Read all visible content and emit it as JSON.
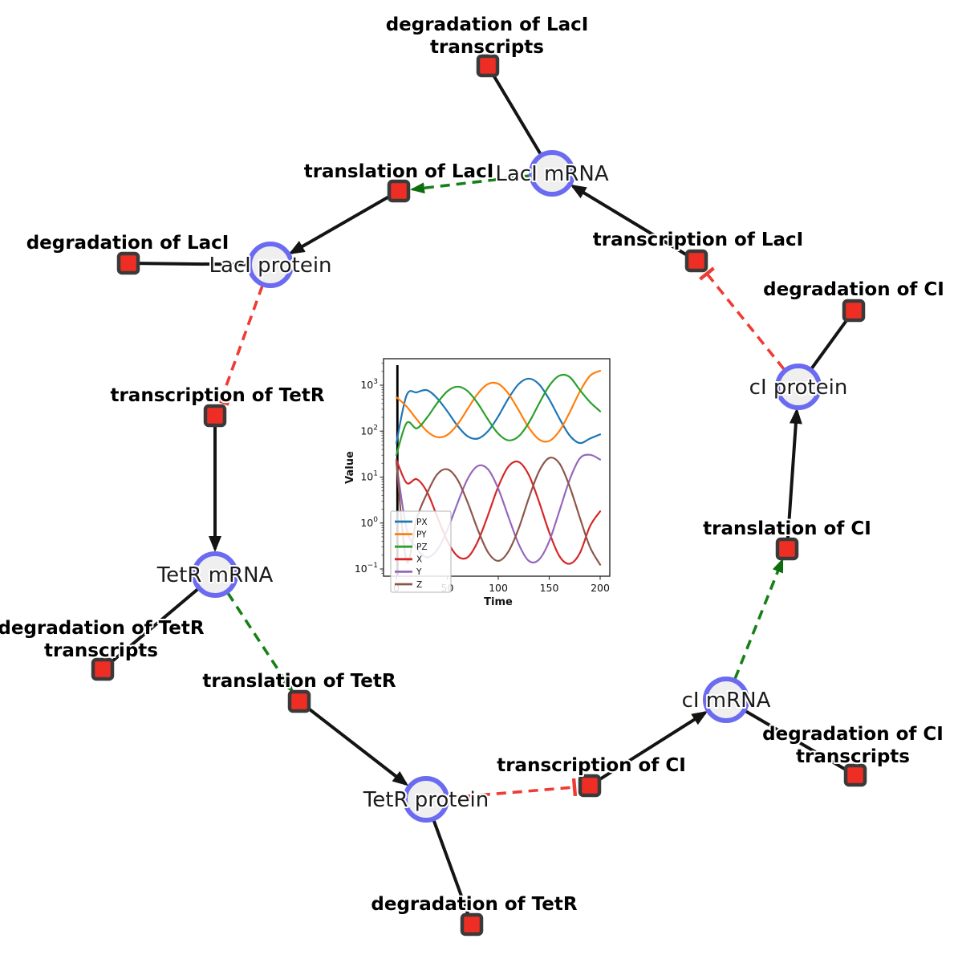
{
  "network": {
    "style": {
      "species_fill": "#efefef",
      "species_border": "#6b6bf2",
      "reaction_fill": "#ee2e24",
      "reaction_border": "#3a3a3a",
      "edge_reaction_color": "#141414",
      "edge_stimulation_color": "#168016",
      "edge_inhibition_color": "#ee3b33"
    },
    "species": [
      {
        "label": "LacI mRNA"
      },
      {
        "label": "LacI protein"
      },
      {
        "label": "TetR mRNA"
      },
      {
        "label": "TetR protein"
      },
      {
        "label": "cI mRNA"
      },
      {
        "label": "cI protein"
      }
    ],
    "reactions": [
      {
        "lines": [
          "degradation of LacI",
          "transcripts"
        ]
      },
      {
        "lines": [
          "translation of LacI"
        ]
      },
      {
        "lines": [
          "transcription of LacI"
        ]
      },
      {
        "lines": [
          "degradation of LacI"
        ]
      },
      {
        "lines": [
          "transcription of TetR"
        ]
      },
      {
        "lines": [
          "degradation of TetR",
          "transcripts"
        ]
      },
      {
        "lines": [
          "translation of TetR"
        ]
      },
      {
        "lines": [
          "degradation of TetR"
        ]
      },
      {
        "lines": [
          "transcription of CI"
        ]
      },
      {
        "lines": [
          "degradation of CI",
          "transcripts"
        ]
      },
      {
        "lines": [
          "translation of CI"
        ]
      },
      {
        "lines": [
          "degradation of CI"
        ]
      }
    ]
  },
  "chart_data": {
    "type": "line",
    "title": "",
    "xlabel": "Time",
    "ylabel": "Value",
    "x_ticks": [
      0,
      50,
      100,
      150,
      200
    ],
    "y_scale": "log",
    "y_tick_exponents": [
      -1,
      0,
      1,
      2,
      3
    ],
    "xlim": [
      -13,
      209
    ],
    "ylim": [
      0.07,
      3800
    ],
    "grid": false,
    "legend_position": "lower left",
    "t0_marker_line": true,
    "x": [
      0,
      10,
      20,
      30,
      40,
      50,
      60,
      70,
      80,
      90,
      100,
      110,
      120,
      130,
      140,
      150,
      160,
      170,
      180,
      190,
      200
    ],
    "series": [
      {
        "name": "PX",
        "color": "#1f77b4",
        "values": [
          55,
          600,
          700,
          780,
          522,
          271,
          131,
          77,
          69,
          100,
          210,
          516,
          1057,
          1393,
          1050,
          492,
          189,
          81,
          55,
          69,
          85
        ]
      },
      {
        "name": "PY",
        "color": "#ff7f0e",
        "values": [
          550,
          345,
          181,
          100,
          74,
          83,
          140,
          306,
          659,
          1064,
          1069,
          653,
          286,
          119,
          66,
          61,
          101,
          254,
          723,
          1604,
          2061
        ]
      },
      {
        "name": "PZ",
        "color": "#2ca02c",
        "values": [
          30,
          150,
          115,
          196,
          406,
          736,
          931,
          744,
          399,
          178,
          88,
          63,
          77,
          152,
          396,
          970,
          1616,
          1513,
          789,
          430,
          270
        ]
      },
      {
        "name": "X",
        "color": "#d62728",
        "values": [
          24,
          7.5,
          9,
          4.8,
          1.4,
          0.41,
          0.19,
          0.18,
          0.4,
          1.5,
          6.2,
          17,
          21.4,
          11.1,
          2.9,
          0.63,
          0.19,
          0.13,
          0.22,
          0.85,
          1.8
        ]
      },
      {
        "name": "Y",
        "color": "#9467bd",
        "values": [
          20,
          0.76,
          0.28,
          0.18,
          0.26,
          0.71,
          2.7,
          9.2,
          17.5,
          14.7,
          5.6,
          1.36,
          0.35,
          0.15,
          0.16,
          0.4,
          1.83,
          8.7,
          25.4,
          30.6,
          24
        ]
      },
      {
        "name": "Z",
        "color": "#8c564b",
        "values": [
          22,
          0.15,
          1.25,
          4.4,
          11.4,
          14.8,
          8.8,
          2.8,
          0.71,
          0.23,
          0.15,
          0.24,
          0.76,
          3.5,
          13.3,
          26,
          19.9,
          6.3,
          1.32,
          0.3,
          0.124
        ]
      }
    ]
  }
}
